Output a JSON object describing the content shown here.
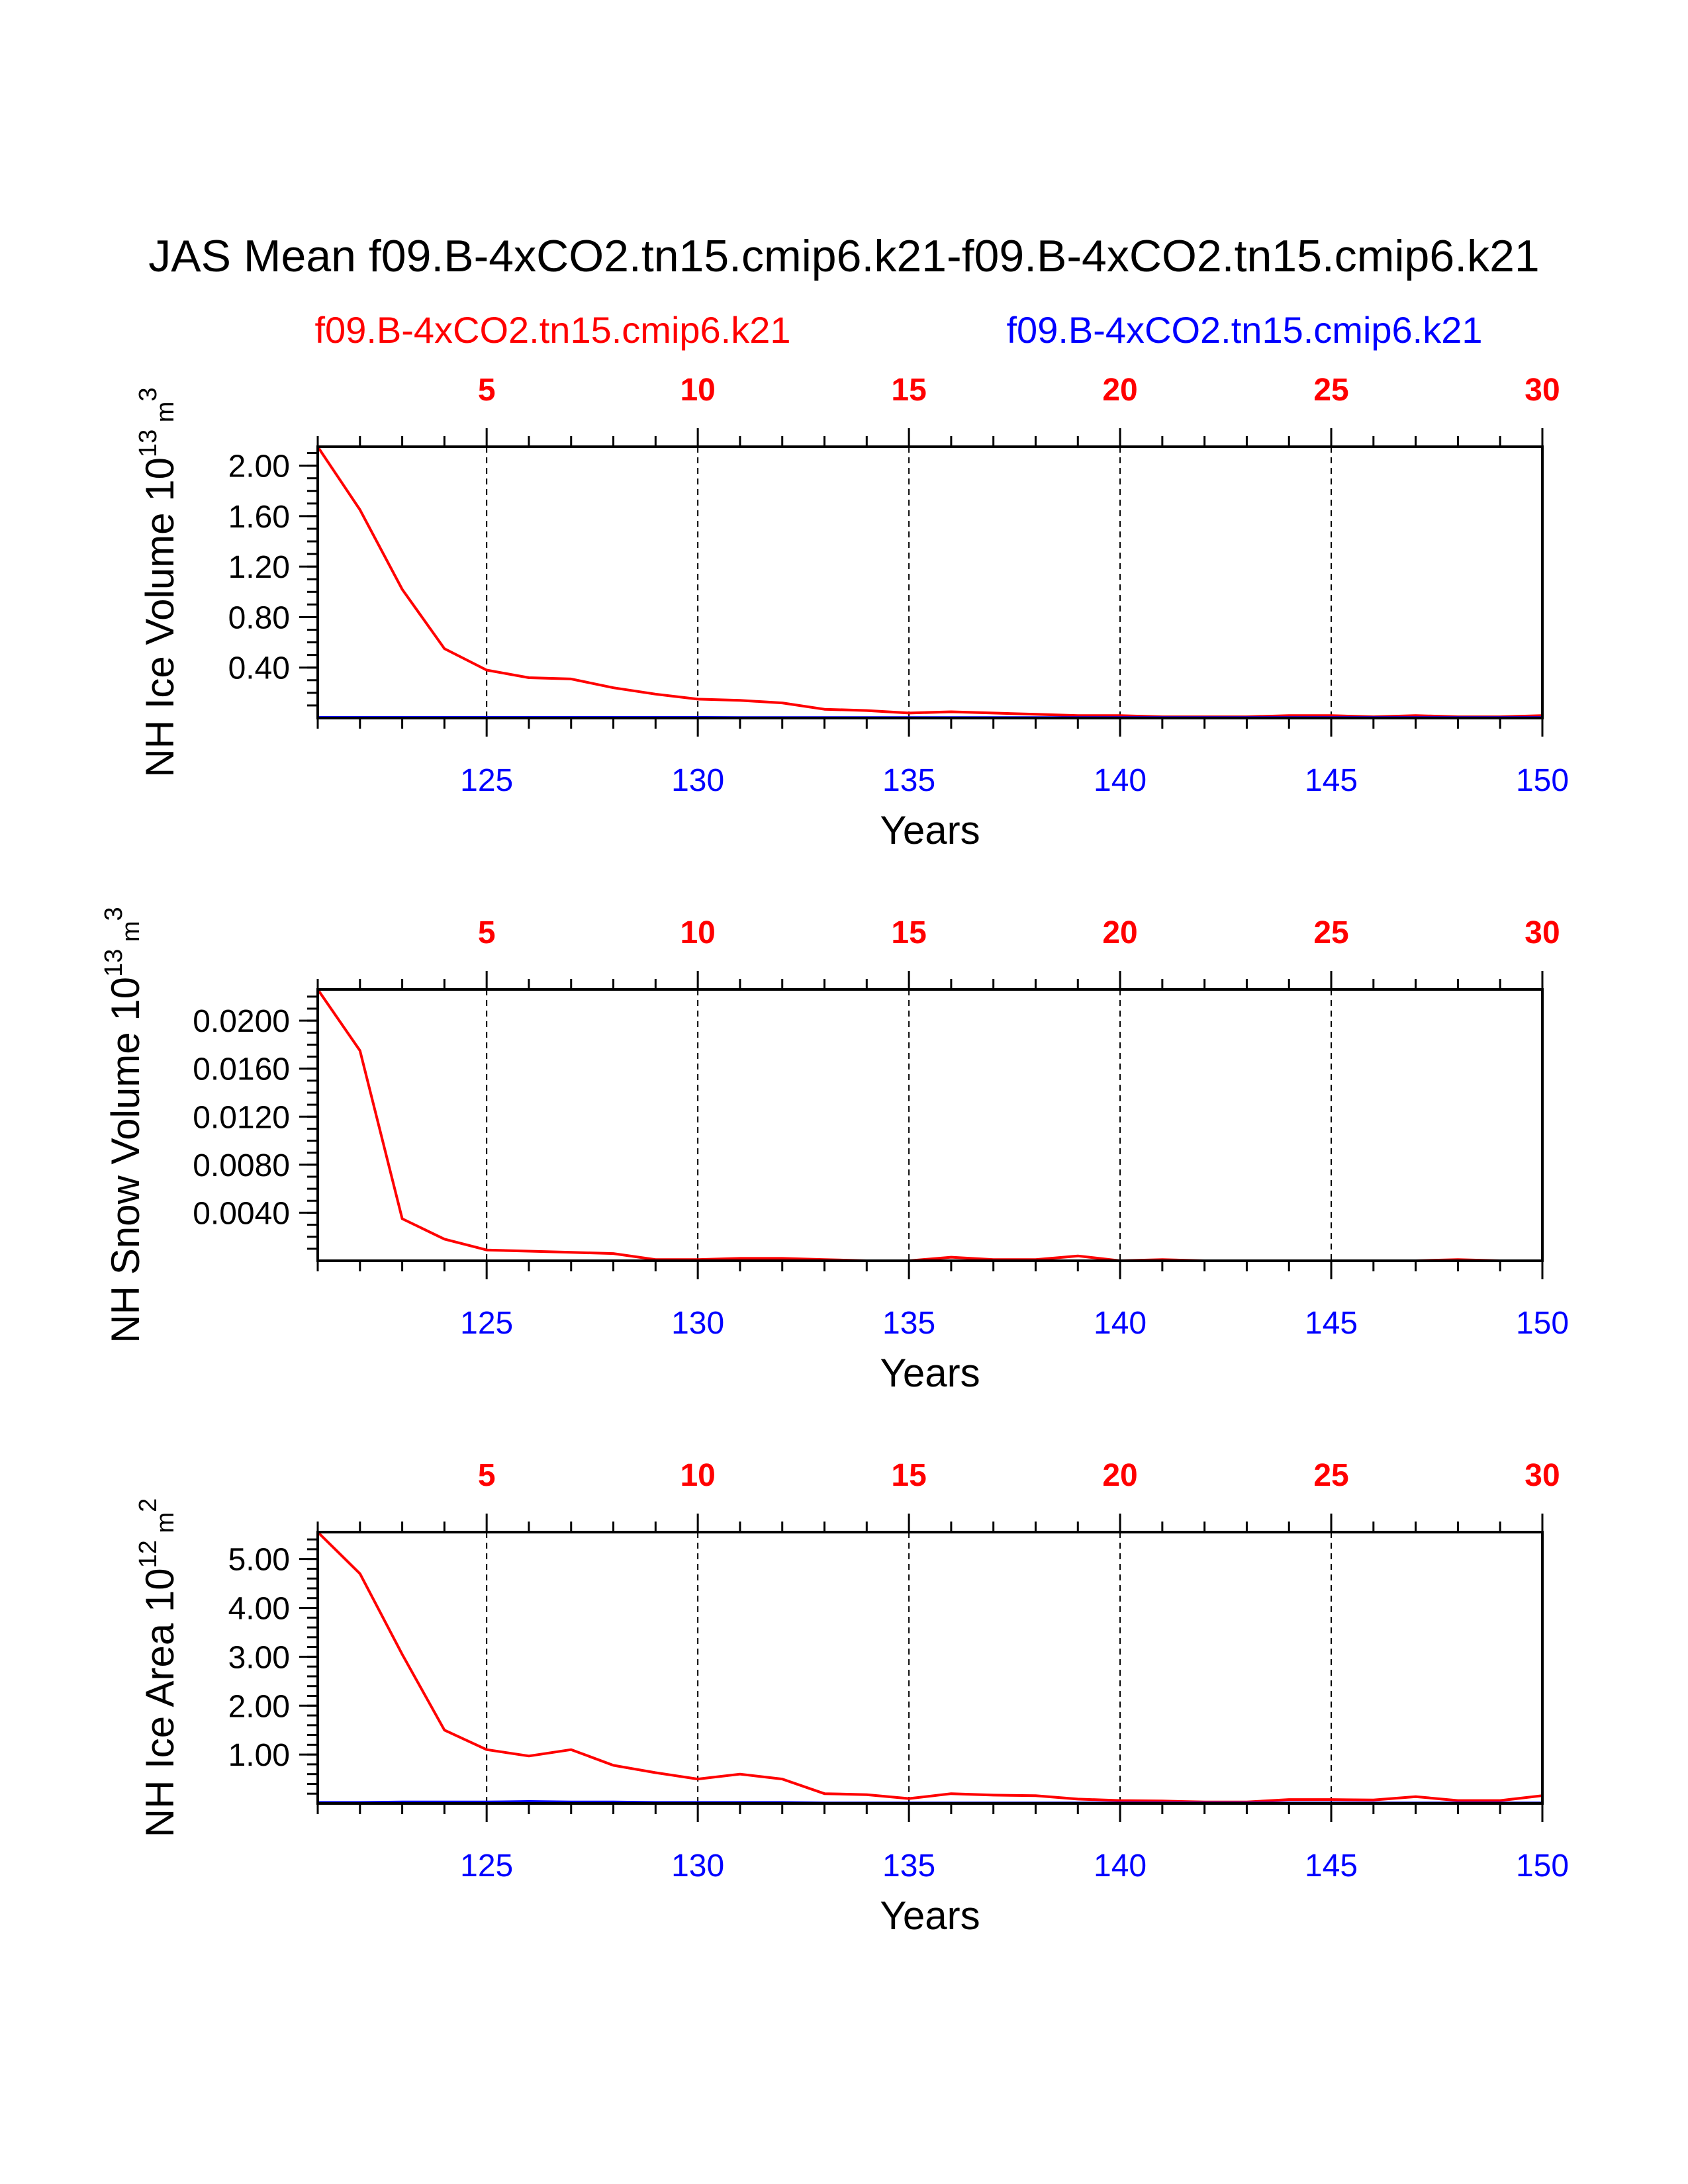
{
  "title": "JAS Mean f09.B-4xCO2.tn15.cmip6.k21-f09.B-4xCO2.tn15.cmip6.k21",
  "legend": {
    "left_label": "f09.B-4xCO2.tn15.cmip6.k21",
    "right_label": "f09.B-4xCO2.tn15.cmip6.k21",
    "left_color": "#ff0000",
    "right_color": "#0000ff"
  },
  "colors": {
    "red": "#ff0000",
    "blue": "#0000ff",
    "black": "#000000"
  },
  "chart_data": [
    {
      "type": "line",
      "ylabel": "NH Ice Volume 10",
      "ylabel_exp": "13",
      "ylabel_unit": " m",
      "ylabel_unit_exp": "3",
      "xlabel": "Years",
      "xlim": [
        121,
        150
      ],
      "ylim": [
        0,
        2.15
      ],
      "yticks": [
        0.4,
        0.8,
        1.2,
        1.6,
        2.0
      ],
      "ytick_labels": [
        "0.40",
        "0.80",
        "1.20",
        "1.60",
        "2.00"
      ],
      "yminor_step": 0.1,
      "bottom_ticks": [
        125,
        130,
        135,
        140,
        145,
        150
      ],
      "bottom_tick_labels": [
        "125",
        "130",
        "135",
        "140",
        "145",
        "150"
      ],
      "top_tick_labels": [
        "5",
        "10",
        "15",
        "20",
        "25",
        "30"
      ],
      "x": [
        121,
        122,
        123,
        124,
        125,
        126,
        127,
        128,
        129,
        130,
        131,
        132,
        133,
        134,
        135,
        136,
        137,
        138,
        139,
        140,
        141,
        142,
        143,
        144,
        145,
        146,
        147,
        148,
        149,
        150
      ],
      "series": [
        {
          "name": "f09.B-4xCO2.tn15.cmip6.k21 (red)",
          "color": "#ff0000",
          "values": [
            2.15,
            1.65,
            1.02,
            0.55,
            0.38,
            0.32,
            0.31,
            0.24,
            0.19,
            0.15,
            0.14,
            0.12,
            0.07,
            0.06,
            0.04,
            0.05,
            0.04,
            0.03,
            0.02,
            0.02,
            0.01,
            0.01,
            0.01,
            0.02,
            0.02,
            0.01,
            0.02,
            0.01,
            0.01,
            0.02
          ]
        },
        {
          "name": "f09.B-4xCO2.tn15.cmip6.k21 (blue)",
          "color": "#0000ff",
          "values": [
            0.005,
            0.005,
            0.005,
            0.005,
            0.006,
            0.005,
            0.005,
            0.005,
            0.005,
            0.005,
            0.004,
            0.004,
            0.004,
            0.004,
            0.004,
            0.004,
            0.004,
            0.004,
            0.004,
            0.004,
            0.004,
            0.004,
            0.004,
            0.004,
            0.004,
            0.004,
            0.004,
            0.004,
            0.004,
            0.004
          ]
        }
      ]
    },
    {
      "type": "line",
      "ylabel": "NH Snow Volume 10",
      "ylabel_exp": "13",
      "ylabel_unit": " m",
      "ylabel_unit_exp": "3",
      "xlabel": "Years",
      "xlim": [
        121,
        150
      ],
      "ylim": [
        0,
        0.0226
      ],
      "yticks": [
        0.004,
        0.008,
        0.012,
        0.016,
        0.02
      ],
      "ytick_labels": [
        "0.0040",
        "0.0080",
        "0.0120",
        "0.0160",
        "0.0200"
      ],
      "yminor_step": 0.001,
      "bottom_ticks": [
        125,
        130,
        135,
        140,
        145,
        150
      ],
      "bottom_tick_labels": [
        "125",
        "130",
        "135",
        "140",
        "145",
        "150"
      ],
      "top_tick_labels": [
        "5",
        "10",
        "15",
        "20",
        "25",
        "30"
      ],
      "x": [
        121,
        122,
        123,
        124,
        125,
        126,
        127,
        128,
        129,
        130,
        131,
        132,
        133,
        134,
        135,
        136,
        137,
        138,
        139,
        140,
        141,
        142,
        143,
        144,
        145,
        146,
        147,
        148,
        149,
        150
      ],
      "series": [
        {
          "name": "f09.B-4xCO2.tn15.cmip6.k21 (red)",
          "color": "#ff0000",
          "values": [
            0.0226,
            0.0175,
            0.0035,
            0.0018,
            0.0009,
            0.0008,
            0.0007,
            0.0006,
            0.0001,
            0.0001,
            0.0002,
            0.0002,
            0.0001,
            0.0,
            0.0,
            0.0003,
            0.0001,
            0.0001,
            0.0004,
            0.0,
            0.0001,
            0.0,
            0.0,
            0.0,
            0.0,
            0.0,
            0.0,
            0.0001,
            0.0,
            0.0
          ]
        },
        {
          "name": "f09.B-4xCO2.tn15.cmip6.k21 (blue)",
          "color": "#0000ff",
          "values": [
            0,
            0,
            0,
            0,
            0,
            0,
            0,
            0,
            0,
            0,
            0,
            0,
            0,
            0,
            0,
            0,
            0,
            0,
            0,
            0,
            0,
            0,
            0,
            0,
            0,
            0,
            0,
            0,
            0,
            0
          ]
        }
      ]
    },
    {
      "type": "line",
      "ylabel": "NH Ice Area 10",
      "ylabel_exp": "12",
      "ylabel_unit": " m",
      "ylabel_unit_exp": "2",
      "xlabel": "Years",
      "xlim": [
        121,
        150
      ],
      "ylim": [
        0,
        5.55
      ],
      "yticks": [
        1.0,
        2.0,
        3.0,
        4.0,
        5.0
      ],
      "ytick_labels": [
        "1.00",
        "2.00",
        "3.00",
        "4.00",
        "5.00"
      ],
      "yminor_step": 0.2,
      "bottom_ticks": [
        125,
        130,
        135,
        140,
        145,
        150
      ],
      "bottom_tick_labels": [
        "125",
        "130",
        "135",
        "140",
        "145",
        "150"
      ],
      "top_tick_labels": [
        "5",
        "10",
        "15",
        "20",
        "25",
        "30"
      ],
      "x": [
        121,
        122,
        123,
        124,
        125,
        126,
        127,
        128,
        129,
        130,
        131,
        132,
        133,
        134,
        135,
        136,
        137,
        138,
        139,
        140,
        141,
        142,
        143,
        144,
        145,
        146,
        147,
        148,
        149,
        150
      ],
      "series": [
        {
          "name": "f09.B-4xCO2.tn15.cmip6.k21 (red)",
          "color": "#ff0000",
          "values": [
            5.55,
            4.7,
            3.05,
            1.5,
            1.1,
            0.97,
            1.1,
            0.78,
            0.63,
            0.5,
            0.6,
            0.5,
            0.2,
            0.18,
            0.1,
            0.2,
            0.17,
            0.16,
            0.09,
            0.06,
            0.05,
            0.03,
            0.03,
            0.08,
            0.08,
            0.07,
            0.14,
            0.06,
            0.06,
            0.16
          ]
        },
        {
          "name": "f09.B-4xCO2.tn15.cmip6.k21 (blue)",
          "color": "#0000ff",
          "values": [
            0.02,
            0.02,
            0.03,
            0.03,
            0.03,
            0.04,
            0.03,
            0.03,
            0.02,
            0.02,
            0.02,
            0.02,
            0.01,
            0.01,
            0.01,
            0.01,
            0.01,
            0.01,
            0.01,
            0.01,
            0.01,
            0.01,
            0.01,
            0.01,
            0.01,
            0.01,
            0.01,
            0.01,
            0.01,
            0.01
          ]
        }
      ]
    }
  ]
}
